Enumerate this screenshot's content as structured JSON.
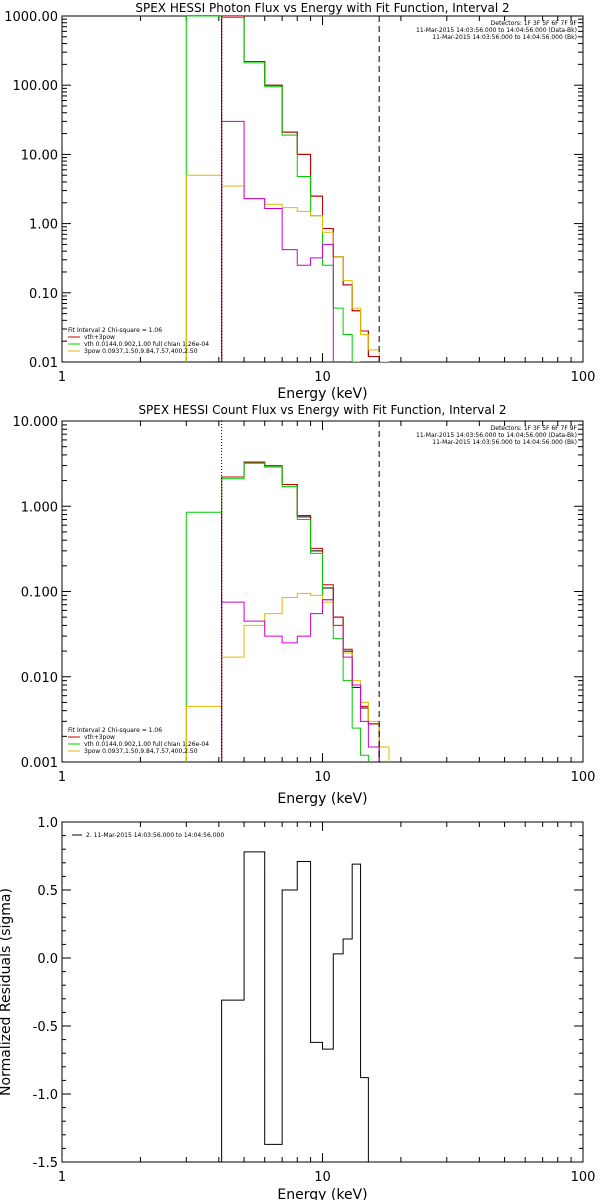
{
  "chart_data": [
    {
      "type": "line",
      "title": "SPEX HESSI Photon Flux vs Energy with Fit Function, Interval 2",
      "xlabel": "Energy (keV)",
      "ylabel": "",
      "xscale": "log",
      "yscale": "log",
      "xlim": [
        1,
        100
      ],
      "ylim": [
        0.01,
        1000
      ],
      "x_ticks": [
        "1",
        "10",
        "100"
      ],
      "y_ticks": [
        "0.01",
        "0.10",
        "1.00",
        "10.00",
        "100.00",
        "1000.00"
      ],
      "header": [
        "Detectors: 1F 3F 5F 6F 7F 9F",
        "11-Mar-2015 14:03:56.000 to 14:04:56.000 (Data-Bk)",
        "11-Mar-2015 14:03:56.000 to 14:04:56.000 (Bk)"
      ],
      "fit_info": {
        "line": "Fit Interval  2   Chi-square = 1.06",
        "legend": [
          {
            "label": "vth+3pow",
            "color": "#cc0000"
          },
          {
            "label": "vth 0.0144,0.902,1.00  full chian 1.26e-04",
            "color": "#00cc00"
          },
          {
            "label": "3pow 0.0937,1.50,9.84,7.57,400,2.50",
            "color": "#e6b800"
          }
        ]
      },
      "vlines": [
        {
          "x": 4.1,
          "style": "dotted"
        },
        {
          "x": 16.5,
          "style": "dashed"
        }
      ],
      "bin_edges": [
        3,
        4.1,
        5,
        6,
        7,
        8,
        9,
        10,
        11,
        12,
        13,
        14,
        15,
        16.5,
        18
      ],
      "series": [
        {
          "color": "#000000",
          "values": [
            null,
            1000,
            220,
            100,
            21,
            10,
            2.5,
            0.85,
            0.33,
            0.13,
            0.055,
            0.028,
            0.012,
            null
          ]
        },
        {
          "color": "#cc0000",
          "values": [
            null,
            1000,
            220,
            100,
            21,
            10,
            2.5,
            0.85,
            0.33,
            0.13,
            0.055,
            0.028,
            0.012,
            null
          ]
        },
        {
          "color": "#00cc00",
          "values": [
            1000,
            950,
            210,
            95,
            19,
            4.8,
            1.3,
            0.25,
            0.06,
            0.025,
            0.01,
            null,
            null,
            null
          ]
        },
        {
          "color": "#e6b800",
          "values": [
            5,
            3.5,
            2.3,
            1.9,
            1.7,
            1.5,
            1.3,
            0.75,
            0.33,
            0.15,
            0.06,
            0.025,
            0.015,
            0.01
          ]
        },
        {
          "color": "#cc00cc",
          "values": [
            null,
            30,
            2.3,
            1.65,
            0.42,
            0.25,
            0.32,
            0.5,
            null,
            null,
            null,
            null,
            null,
            null
          ]
        }
      ]
    },
    {
      "type": "line",
      "title": "SPEX HESSI Count Flux vs Energy with Fit Function, Interval 2",
      "xlabel": "Energy (keV)",
      "ylabel": "",
      "xscale": "log",
      "yscale": "log",
      "xlim": [
        1,
        100
      ],
      "ylim": [
        0.001,
        10
      ],
      "x_ticks": [
        "1",
        "10",
        "100"
      ],
      "y_ticks": [
        "0.001",
        "0.010",
        "0.100",
        "1.000",
        "10.000"
      ],
      "header": [
        "Detectors: 1F 3F 5F 6F 7F 9F",
        "11-Mar-2015 14:03:56.000 to 14:04:56.000 (Data-Bk)",
        "11-Mar-2015 14:03:56.000 to 14:04:56.000 (Bk)"
      ],
      "fit_info": {
        "line": "Fit Interval  2   Chi-square = 1.06",
        "legend": [
          {
            "label": "vth+3pow",
            "color": "#cc0000"
          },
          {
            "label": "vth 0.0144,0.902,1.00  full chian 1.26e-04",
            "color": "#00cc00"
          },
          {
            "label": "3pow 0.0937,1.50,9.84,7.57,400,2.50",
            "color": "#e6b800"
          }
        ]
      },
      "vlines": [
        {
          "x": 4.1,
          "style": "dotted"
        },
        {
          "x": 16.5,
          "style": "dashed"
        }
      ],
      "bin_edges": [
        3,
        4.1,
        5,
        6,
        7,
        8,
        9,
        10,
        11,
        12,
        13,
        14,
        15,
        16.5,
        18
      ],
      "series": [
        {
          "color": "#000000",
          "values": [
            null,
            2.2,
            3.2,
            2.9,
            1.8,
            0.75,
            0.3,
            0.11,
            0.05,
            0.02,
            0.0075,
            0.0043,
            0.0028,
            null
          ]
        },
        {
          "color": "#cc0000",
          "values": [
            null,
            2.2,
            3.3,
            3.0,
            1.8,
            0.78,
            0.32,
            0.12,
            0.05,
            0.021,
            0.008,
            0.0045,
            0.0028,
            null
          ]
        },
        {
          "color": "#00cc00",
          "values": [
            0.85,
            2.1,
            3.2,
            2.9,
            1.7,
            0.7,
            0.28,
            0.08,
            0.028,
            0.009,
            0.0025,
            0.0012,
            null,
            null
          ]
        },
        {
          "color": "#e6b800",
          "values": [
            0.0045,
            0.017,
            0.04,
            0.055,
            0.085,
            0.095,
            0.09,
            0.075,
            0.04,
            0.019,
            0.009,
            0.005,
            0.003,
            0.0015
          ]
        },
        {
          "color": "#cc00cc",
          "values": [
            null,
            0.075,
            0.045,
            0.03,
            0.025,
            0.03,
            0.055,
            0.08,
            0.04,
            0.017,
            0.008,
            0.003,
            0.0015,
            null
          ]
        }
      ]
    },
    {
      "type": "line",
      "title": "",
      "xlabel": "Energy (keV)",
      "ylabel": "Normalized Residuals (sigma)",
      "xscale": "log",
      "yscale": "linear",
      "xlim": [
        1,
        100
      ],
      "ylim": [
        -1.5,
        1.0
      ],
      "x_ticks": [
        "1",
        "10",
        "100"
      ],
      "y_ticks": [
        "-1.5",
        "-1.0",
        "-0.5",
        "0.0",
        "0.5",
        "1.0"
      ],
      "legend": [
        {
          "label": "2. 11-Mar-2015 14:03:56.000 to 14:04:56.000",
          "color": "#000000"
        }
      ],
      "bin_edges": [
        4.1,
        5,
        6,
        7,
        8,
        9,
        10,
        11,
        12,
        13,
        14,
        15,
        16.5
      ],
      "series": [
        {
          "color": "#000000",
          "values": [
            -0.31,
            0.78,
            -1.37,
            0.5,
            0.71,
            -0.62,
            -0.67,
            0.03,
            0.14,
            0.69,
            -0.88,
            null
          ]
        }
      ]
    }
  ]
}
